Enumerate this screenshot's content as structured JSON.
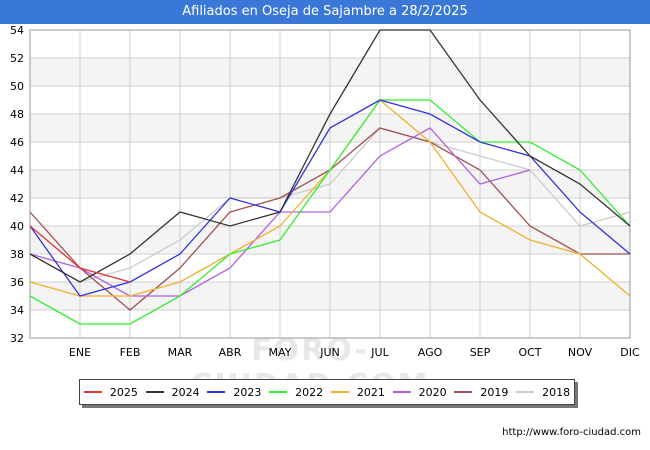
{
  "title": "Afiliados en Oseja de Sajambre a 28/2/2025",
  "watermark": "FORO-CIUDAD.COM",
  "source_url": "http://www.foro-ciudad.com",
  "chart_data": {
    "type": "line",
    "title": "Afiliados en Oseja de Sajambre a 28/2/2025",
    "xlabel": "",
    "ylabel": "",
    "ylim": [
      32,
      54
    ],
    "yticks": [
      32,
      34,
      36,
      38,
      40,
      42,
      44,
      46,
      48,
      50,
      52,
      54
    ],
    "categories": [
      "",
      "ENE",
      "FEB",
      "MAR",
      "ABR",
      "MAY",
      "JUN",
      "JUL",
      "AGO",
      "SEP",
      "OCT",
      "NOV",
      "DIC"
    ],
    "grid": true,
    "legend_position": "bottom",
    "series": [
      {
        "name": "2018",
        "color": "#cccccc",
        "values": [
          null,
          36,
          37,
          39,
          42,
          42,
          43,
          47,
          46,
          45,
          44,
          40,
          41
        ]
      },
      {
        "name": "2019",
        "color": "#a05050",
        "values": [
          41,
          37,
          34,
          37,
          41,
          42,
          44,
          47,
          46,
          44,
          40,
          38,
          38
        ]
      },
      {
        "name": "2020",
        "color": "#b05fe0",
        "values": [
          38,
          37,
          35,
          35,
          37,
          41,
          41,
          45,
          47,
          43,
          44,
          null,
          36
        ]
      },
      {
        "name": "2021",
        "color": "#f0b030",
        "values": [
          36,
          35,
          35,
          36,
          38,
          40,
          44,
          49,
          46,
          41,
          39,
          38,
          35
        ]
      },
      {
        "name": "2022",
        "color": "#33ee33",
        "values": [
          35,
          33,
          33,
          35,
          38,
          39,
          44,
          49,
          49,
          46,
          46,
          44,
          40
        ]
      },
      {
        "name": "2023",
        "color": "#3333dd",
        "values": [
          40,
          35,
          36,
          38,
          42,
          41,
          47,
          49,
          48,
          46,
          45,
          41,
          38
        ]
      },
      {
        "name": "2024",
        "color": "#333333",
        "values": [
          38,
          36,
          38,
          41,
          40,
          41,
          48,
          54,
          54,
          49,
          45,
          43,
          40
        ]
      },
      {
        "name": "2025",
        "color": "#dd3333",
        "values": [
          40,
          37,
          36,
          null,
          null,
          null,
          null,
          null,
          null,
          null,
          null,
          null,
          null
        ]
      }
    ],
    "legend_order": [
      "2025",
      "2024",
      "2023",
      "2022",
      "2021",
      "2020",
      "2019",
      "2018"
    ]
  }
}
